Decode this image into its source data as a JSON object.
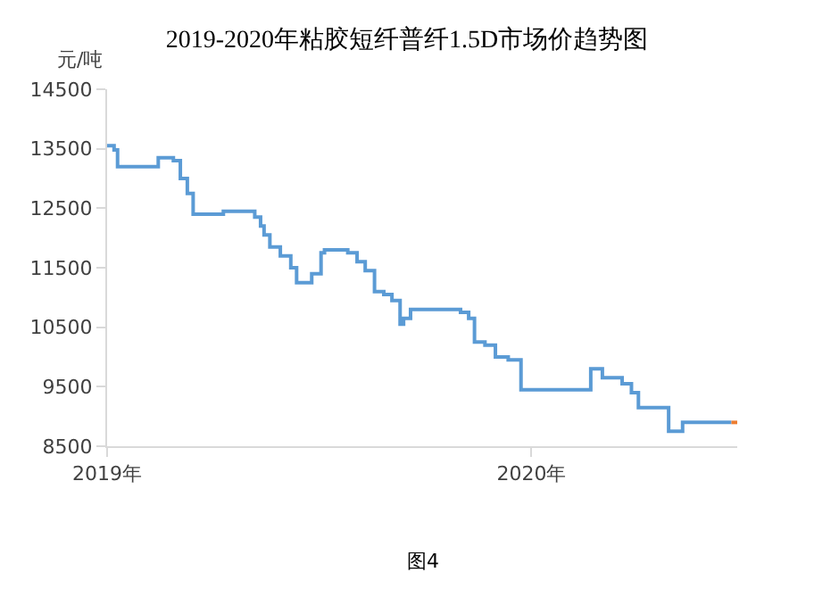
{
  "chart_data": {
    "type": "step",
    "title": "2019-2020年粘胶短纤普纤1.5D市场价趋势图",
    "ylabel": "元/吨",
    "annotations": [
      "图4"
    ],
    "series": [
      {
        "color": "#5b9bd5",
        "x": [
          "2019-01-01",
          "2019-01-07",
          "2019-01-10",
          "2019-02-14",
          "2019-02-27",
          "2019-03-05",
          "2019-03-11",
          "2019-03-16",
          "2019-04-11",
          "2019-05-08",
          "2019-05-13",
          "2019-05-16",
          "2019-05-21",
          "2019-05-30",
          "2019-06-08",
          "2019-06-13",
          "2019-06-26",
          "2019-07-04",
          "2019-07-07",
          "2019-07-27",
          "2019-08-04",
          "2019-08-11",
          "2019-08-19",
          "2019-08-27",
          "2019-09-03",
          "2019-09-10",
          "2019-09-13",
          "2019-09-19",
          "2019-11-01",
          "2019-11-08",
          "2019-11-13",
          "2019-11-22",
          "2019-12-01",
          "2019-12-12",
          "2019-12-23",
          "2020-02-21",
          "2020-03-02",
          "2020-03-19",
          "2020-03-27",
          "2020-04-02",
          "2020-04-28",
          "2020-05-10",
          "2020-06-21"
        ],
        "values": [
          13550,
          13480,
          13200,
          13350,
          13300,
          13000,
          12750,
          12400,
          12450,
          12350,
          12200,
          12050,
          11850,
          11700,
          11500,
          11250,
          11400,
          11750,
          11800,
          11750,
          11600,
          11450,
          11100,
          11050,
          10950,
          10550,
          10650,
          10800,
          10750,
          10650,
          10250,
          10200,
          10000,
          9950,
          9450,
          9800,
          9650,
          9550,
          9400,
          9150,
          8750,
          8900,
          8900
        ]
      },
      {
        "color": "#ed7d31",
        "x": [
          "2020-06-21",
          "2020-06-26"
        ],
        "values": [
          8900,
          8900
        ]
      }
    ],
    "xlim": [
      "2019-01-01",
      "2020-06-26"
    ],
    "xticks": [
      {
        "value": "2019-01-01",
        "label": "2019年"
      },
      {
        "value": "2020-01-01",
        "label": "2020年"
      }
    ],
    "ylim": [
      8500,
      14500
    ],
    "yticks": [
      8500,
      9500,
      10500,
      11500,
      12500,
      13500,
      14500
    ],
    "marker": "none",
    "line_style": "solid"
  }
}
